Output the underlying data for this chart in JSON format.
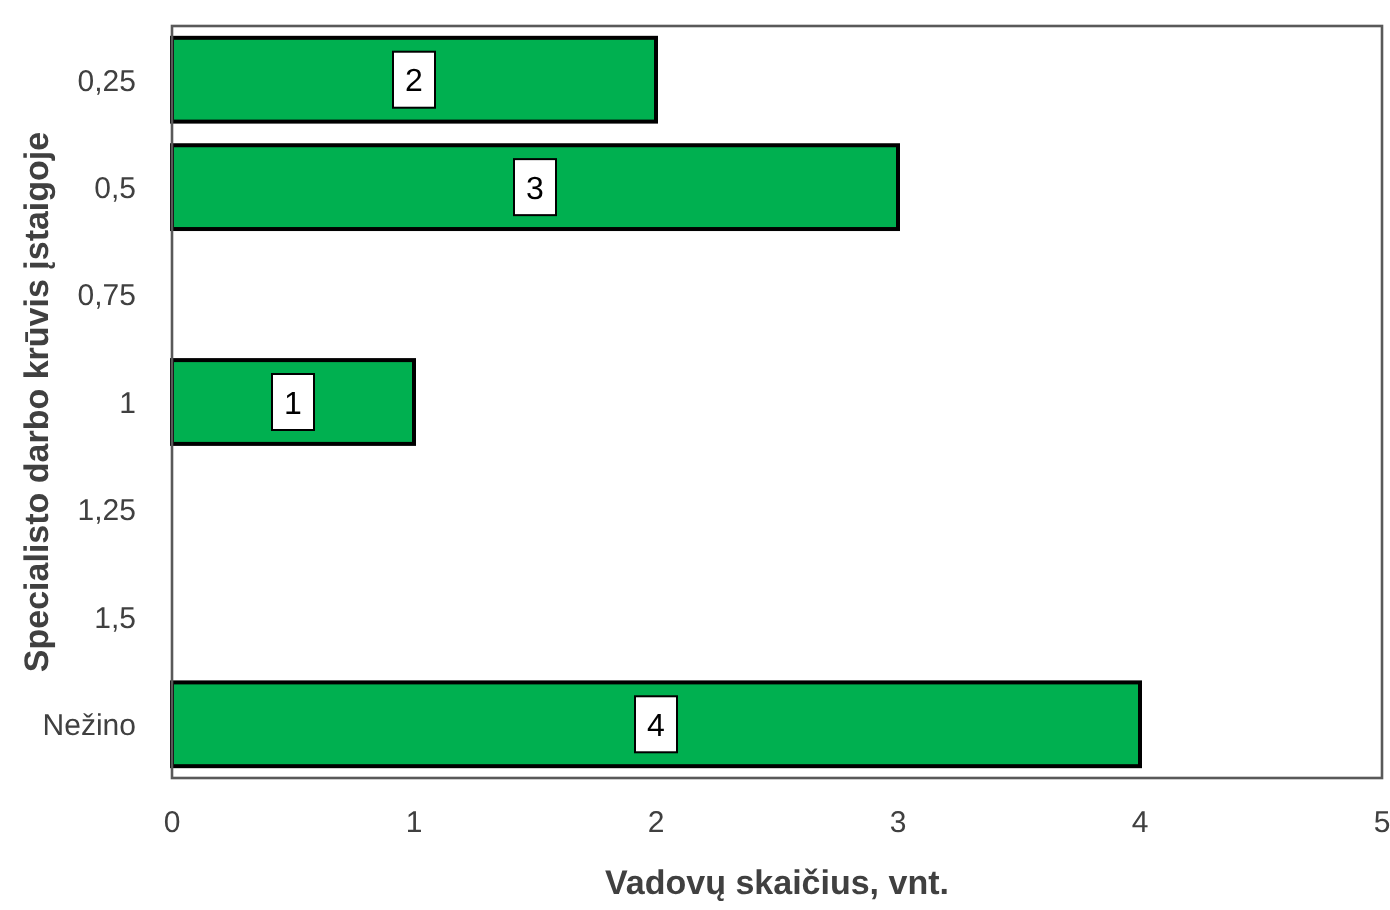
{
  "chart_data": {
    "type": "bar",
    "orientation": "horizontal",
    "xlabel": "Vadovų skaičius, vnt.",
    "ylabel": "Specialisto darbo krūvis įstaigoje",
    "categories": [
      "0,25",
      "0,5",
      "0,75",
      "1",
      "1,25",
      "1,5",
      "Nežino"
    ],
    "values": [
      2,
      3,
      null,
      1,
      null,
      null,
      4
    ],
    "color": "#00b050",
    "xlim": [
      0,
      5
    ],
    "xticks": [
      0,
      1,
      2,
      3,
      4,
      5
    ],
    "grid": false,
    "data_labels": true
  }
}
